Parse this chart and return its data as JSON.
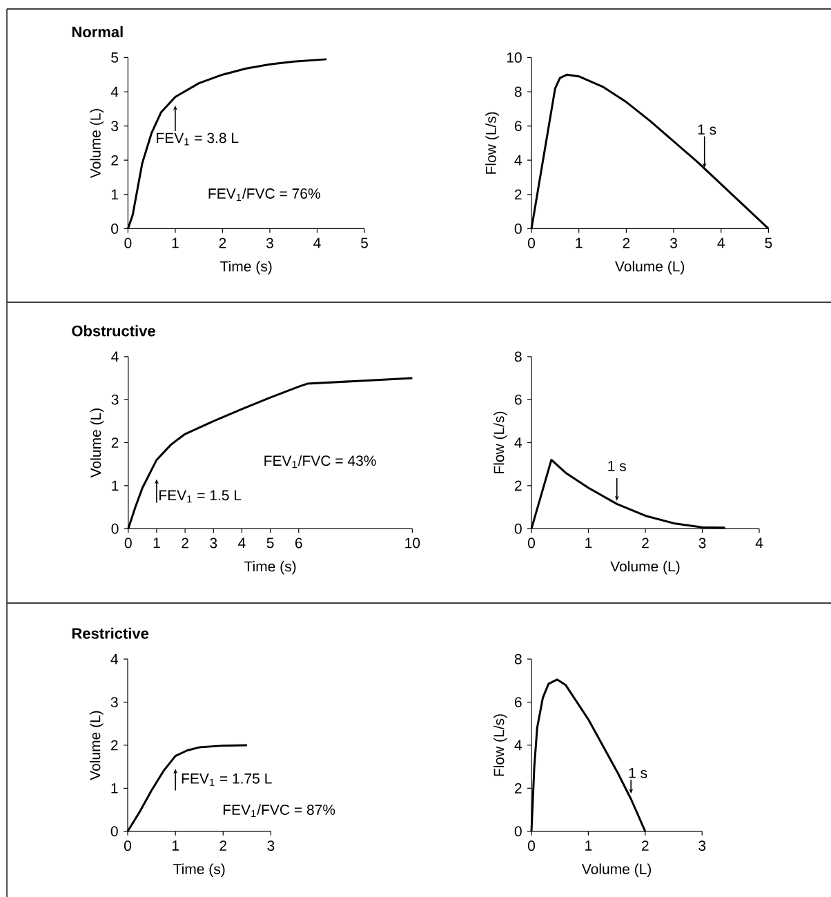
{
  "chart_data": [
    {
      "type": "line",
      "title": "Normal",
      "xlabel": "Time (s)",
      "ylabel": "Volume (L)",
      "color": "#000000",
      "x": [
        0,
        0.1,
        0.3,
        0.5,
        0.7,
        1,
        1.5,
        2,
        2.5,
        3,
        3.5,
        4.2
      ],
      "values": [
        0,
        0.4,
        1.9,
        2.8,
        3.4,
        3.85,
        4.25,
        4.5,
        4.68,
        4.8,
        4.88,
        4.95
      ],
      "xlim": [
        0,
        5
      ],
      "ylim": [
        0,
        5
      ],
      "xticks": [
        0,
        1,
        2,
        3,
        4,
        5
      ],
      "yticks": [
        0,
        1,
        2,
        3,
        4,
        5
      ],
      "annotations": [
        {
          "text": "FEV$_{1}$ = 3.8 L",
          "x": 1,
          "y": 3.8
        },
        "FEV$_{1}$/FVC = 76%"
      ]
    },
    {
      "type": "line",
      "xlabel": "Volume (L)",
      "ylabel": "Flow (L/s)",
      "color": "#000000",
      "x": [
        0,
        0.5,
        0.6,
        0.75,
        1,
        1.5,
        2,
        2.5,
        3,
        3.5,
        4,
        4.5,
        5
      ],
      "values": [
        0,
        8.2,
        8.8,
        9.0,
        8.9,
        8.3,
        7.4,
        6.3,
        5.1,
        3.9,
        2.6,
        1.3,
        0
      ],
      "xlim": [
        0,
        5
      ],
      "ylim": [
        0,
        10
      ],
      "xticks": [
        0,
        1,
        2,
        3,
        4,
        5
      ],
      "yticks": [
        0,
        2,
        4,
        6,
        8,
        10
      ],
      "annotations": [
        {
          "text": "1 s",
          "x": 3.65,
          "y": 3.4
        }
      ]
    },
    {
      "type": "line",
      "title": "Obstructive",
      "xlabel": "Time (s)",
      "ylabel": "Volume (L)",
      "color": "#000000",
      "x": [
        0,
        0.25,
        0.5,
        1,
        1.5,
        2,
        3,
        4,
        5,
        6,
        6.3,
        10
      ],
      "values": [
        0,
        0.5,
        0.95,
        1.6,
        1.95,
        2.2,
        2.5,
        2.78,
        3.05,
        3.3,
        3.37,
        3.5
      ],
      "xlim": [
        0,
        10
      ],
      "ylim": [
        0,
        4
      ],
      "xticks": [
        0,
        1,
        2,
        3,
        4,
        5,
        6,
        10
      ],
      "yticks": [
        0,
        1,
        2,
        3,
        4
      ],
      "annotations": [
        {
          "text": "FEV$_{1}$ = 1.5 L",
          "x": 1,
          "y": 1.5
        },
        "FEV$_{1}$/FVC = 43%"
      ]
    },
    {
      "type": "line",
      "xlabel": "Volume (L)",
      "ylabel": "Flow (L/s)",
      "color": "#000000",
      "x": [
        0,
        0.35,
        0.6,
        1,
        1.5,
        2,
        2.5,
        3,
        3.4
      ],
      "values": [
        0,
        3.2,
        2.6,
        1.9,
        1.15,
        0.6,
        0.25,
        0.06,
        0.05
      ],
      "xlim": [
        0,
        4
      ],
      "ylim": [
        0,
        8
      ],
      "xticks": [
        0,
        1,
        2,
        3,
        4
      ],
      "yticks": [
        0,
        2,
        4,
        6,
        8
      ],
      "annotations": [
        {
          "text": "1 s",
          "x": 1.5,
          "y": 1.2
        }
      ]
    },
    {
      "type": "line",
      "title": "Restrictive",
      "xlabel": "Time (s)",
      "ylabel": "Volume (L)",
      "color": "#000000",
      "x": [
        0,
        0.25,
        0.5,
        0.75,
        1,
        1.25,
        1.5,
        2,
        2.5
      ],
      "values": [
        0,
        0.45,
        0.95,
        1.4,
        1.75,
        1.88,
        1.95,
        1.99,
        2.0
      ],
      "xlim": [
        0,
        3
      ],
      "ylim": [
        0,
        4
      ],
      "xticks": [
        0,
        1,
        2,
        3
      ],
      "yticks": [
        0,
        1,
        2,
        3,
        4
      ],
      "annotations": [
        {
          "text": "FEV$_{1}$ = 1.75 L",
          "x": 1,
          "y": 1.75
        },
        "FEV$_{1}$/FVC = 87%"
      ]
    },
    {
      "type": "line",
      "xlabel": "Volume (L)",
      "ylabel": "Flow (L/s)",
      "color": "#000000",
      "x": [
        0,
        0.05,
        0.1,
        0.2,
        0.3,
        0.45,
        0.6,
        0.8,
        1,
        1.25,
        1.5,
        1.75,
        2
      ],
      "values": [
        0,
        3,
        4.8,
        6.2,
        6.85,
        7.05,
        6.8,
        6,
        5.2,
        4,
        2.8,
        1.5,
        0
      ],
      "xlim": [
        0,
        3
      ],
      "ylim": [
        0,
        8
      ],
      "xticks": [
        0,
        1,
        2,
        3
      ],
      "yticks": [
        0,
        2,
        4,
        6,
        8
      ],
      "annotations": [
        {
          "text": "1 s",
          "x": 1.75,
          "y": 1.7
        }
      ]
    }
  ]
}
